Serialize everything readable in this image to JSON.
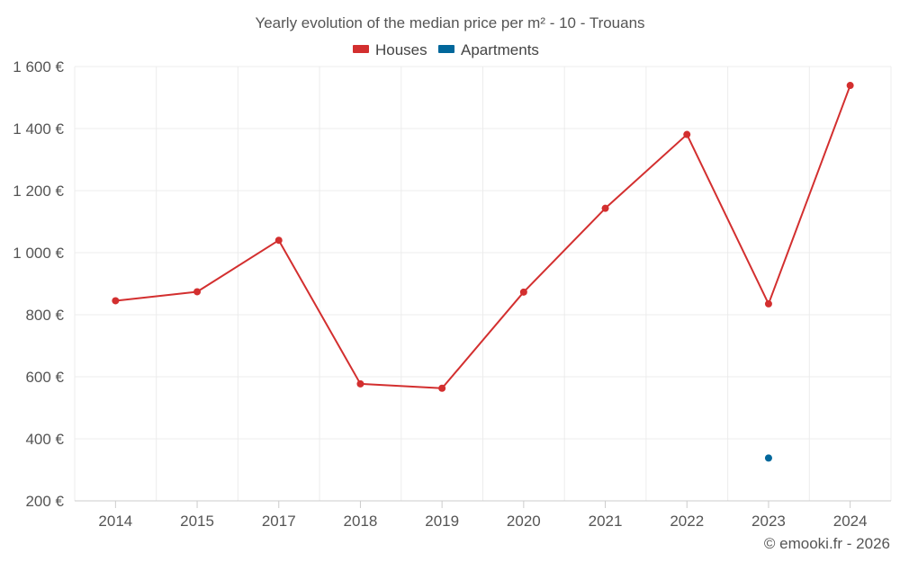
{
  "chart_data": {
    "type": "line",
    "title": "Yearly evolution of the median price per m² - 10 - Trouans",
    "categories": [
      "2014",
      "2015",
      "2017",
      "2018",
      "2019",
      "2020",
      "2021",
      "2022",
      "2023",
      "2024"
    ],
    "series": [
      {
        "name": "Houses",
        "color": "#d32f2f",
        "values": [
          845,
          874,
          1040,
          577,
          563,
          873,
          1143,
          1381,
          835,
          1539
        ]
      },
      {
        "name": "Apartments",
        "color": "#01679b",
        "values": [
          null,
          null,
          null,
          null,
          null,
          null,
          null,
          null,
          338,
          null
        ]
      }
    ],
    "ylim": [
      200,
      1600
    ],
    "yticks": [
      200,
      400,
      600,
      800,
      1000,
      1200,
      1400,
      1600
    ],
    "ytick_labels": [
      "200 €",
      "400 €",
      "600 €",
      "800 €",
      "1 000 €",
      "1 200 €",
      "1 400 €",
      "1 600 €"
    ],
    "xlabel": "",
    "ylabel": "",
    "grid": true,
    "legend_position": "top-center",
    "credit": "© emooki.fr - 2026"
  }
}
